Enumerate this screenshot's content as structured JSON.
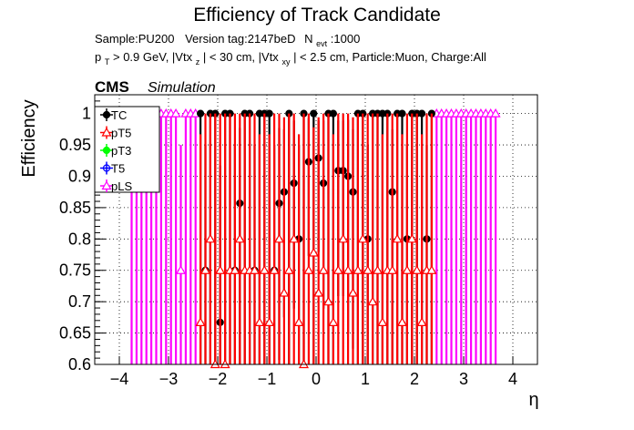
{
  "chart_data": {
    "type": "scatter",
    "title": "Efficiency of Track Candidate",
    "info_line1": {
      "sample": "Sample:PU200",
      "version": "Version tag:2147beD",
      "nevt_main": "N",
      "nevt_sub": "evt",
      "nevt_value": ":1000"
    },
    "info_line2": {
      "p": "p",
      "p_sub": "T",
      "cut1": " > 0.9 GeV, |Vtx",
      "sub1": "z",
      "cut2": "| < 30 cm, |Vtx",
      "sub2": "xy",
      "cut3": "| < 2.5 cm, Particle:Muon, Charge:All"
    },
    "cms_label": "CMS",
    "cms_sub": "Simulation",
    "xlabel": "η",
    "ylabel": "Efficiency",
    "xlim": [
      -4.5,
      4.5
    ],
    "ylim": [
      0.6,
      1.03
    ],
    "xticks": [
      -4,
      -3,
      -2,
      -1,
      0,
      1,
      2,
      3,
      4
    ],
    "xtick_labels": [
      "−4",
      "−3",
      "−2",
      "−1",
      "0",
      "1",
      "2",
      "3",
      "4"
    ],
    "yticks": [
      0.6,
      0.65,
      0.7,
      0.75,
      0.8,
      0.85,
      0.9,
      0.95,
      1
    ],
    "ytick_labels": [
      "0.6",
      "0.65",
      "0.7",
      "0.75",
      "0.8",
      "0.85",
      "0.9",
      "0.95",
      "1"
    ],
    "grid": true,
    "legend_position": "top-left",
    "series": [
      {
        "name": "pLS",
        "color": "#ff00ff",
        "marker": "triangle",
        "x": [
          -3.75,
          -3.65,
          -3.55,
          -3.45,
          -3.35,
          -3.25,
          -3.15,
          -3.05,
          -2.95,
          -2.85,
          -2.75,
          -2.65,
          -2.55,
          -2.45,
          2.45,
          2.55,
          2.65,
          2.75,
          2.85,
          2.95,
          3.05,
          3.15,
          3.25,
          3.35,
          3.45,
          3.55,
          3.65
        ],
        "y": [
          1,
          1,
          1,
          1,
          1,
          1,
          1,
          1,
          1,
          1,
          0.75,
          1,
          1,
          1,
          1,
          1,
          1,
          1,
          1,
          1,
          1,
          1,
          1,
          1,
          1,
          1,
          1
        ],
        "err_low": [
          0.4,
          0.4,
          0.4,
          0.4,
          0.4,
          0.4,
          0.4,
          0.4,
          0.4,
          0.4,
          0.35,
          0.4,
          0.4,
          0.4,
          0.4,
          0.4,
          0.4,
          0.4,
          0.4,
          0.4,
          0.4,
          0.4,
          0.4,
          0.4,
          0.4,
          0.4,
          0.4
        ],
        "err_high": [
          0,
          0,
          0,
          0,
          0,
          0,
          0,
          0,
          0,
          0,
          0.2,
          0,
          0,
          0,
          0,
          0,
          0,
          0,
          0,
          0,
          0,
          0,
          0,
          0,
          0,
          0,
          0
        ]
      },
      {
        "name": "TC",
        "color": "#000000",
        "marker": "circle",
        "x": [
          -2.35,
          -2.25,
          -2.15,
          -2.05,
          -1.95,
          -1.85,
          -1.75,
          -1.65,
          -1.55,
          -1.45,
          -1.35,
          -1.25,
          -1.15,
          -1.05,
          -0.95,
          -0.85,
          -0.75,
          -0.65,
          -0.55,
          -0.45,
          -0.35,
          -0.25,
          -0.15,
          -0.05,
          0.05,
          0.15,
          0.25,
          0.35,
          0.45,
          0.55,
          0.65,
          0.75,
          0.85,
          0.95,
          1.05,
          1.15,
          1.25,
          1.35,
          1.45,
          1.55,
          1.65,
          1.75,
          1.85,
          1.95,
          2.05,
          2.15,
          2.25,
          2.35
        ],
        "y": [
          1,
          0.75,
          1,
          1,
          0.667,
          1,
          1,
          0.75,
          0.857,
          1,
          1,
          0.75,
          1,
          1,
          1,
          0.75,
          0.857,
          0.875,
          1,
          0.889,
          0.8,
          1,
          0.923,
          1,
          0.929,
          0.889,
          1,
          1,
          0.909,
          0.909,
          0.9,
          0.875,
          1,
          1,
          0.8,
          1,
          1,
          1,
          1,
          0.875,
          1,
          1,
          0.8,
          1,
          1,
          1,
          0.8,
          1
        ],
        "err_low": [
          0.4,
          0.3,
          0.4,
          0.4,
          0.25,
          0.4,
          0.4,
          0.3,
          0.3,
          0.4,
          0.4,
          0.3,
          0.4,
          0.4,
          0.4,
          0.3,
          0.25,
          0.2,
          0.4,
          0.2,
          0.25,
          0.4,
          0.15,
          0.4,
          0.15,
          0.2,
          0.4,
          0.4,
          0.2,
          0.2,
          0.25,
          0.25,
          0.4,
          0.4,
          0.3,
          0.4,
          0.4,
          0.4,
          0.4,
          0.3,
          0.4,
          0.4,
          0.3,
          0.4,
          0.4,
          0.4,
          0.3,
          0.4
        ],
        "err_high": [
          0,
          0.2,
          0,
          0,
          0.25,
          0,
          0,
          0.2,
          0.12,
          0,
          0,
          0.2,
          0,
          0,
          0,
          0.2,
          0.12,
          0.1,
          0,
          0.1,
          0.15,
          0,
          0.07,
          0,
          0.06,
          0.1,
          0,
          0,
          0.08,
          0.08,
          0.09,
          0.1,
          0,
          0,
          0.15,
          0,
          0,
          0,
          0,
          0.1,
          0,
          0,
          0.15,
          0,
          0,
          0,
          0.15,
          0
        ]
      },
      {
        "name": "pT5",
        "color": "#ff0000",
        "marker": "triangle",
        "x": [
          -2.35,
          -2.25,
          -2.15,
          -2.05,
          -1.95,
          -1.85,
          -1.75,
          -1.65,
          -1.55,
          -1.45,
          -1.35,
          -1.25,
          -1.15,
          -1.05,
          -0.95,
          -0.85,
          -0.75,
          -0.65,
          -0.55,
          -0.45,
          -0.35,
          -0.25,
          -0.15,
          -0.05,
          0.05,
          0.15,
          0.25,
          0.35,
          0.45,
          0.55,
          0.65,
          0.75,
          0.85,
          0.95,
          1.05,
          1.15,
          1.25,
          1.35,
          1.45,
          1.55,
          1.65,
          1.75,
          1.85,
          1.95,
          2.05,
          2.15,
          2.25,
          2.35
        ],
        "y": [
          0.667,
          0.75,
          0.8,
          0.6,
          0.75,
          0.6,
          0.75,
          0.75,
          0.8,
          0.75,
          0.75,
          0.75,
          0.667,
          0.75,
          0.667,
          0.75,
          0.8,
          0.714,
          0.75,
          0.8,
          0.667,
          0.6,
          0.75,
          0.778,
          0.714,
          0.75,
          0.7,
          0.667,
          0.75,
          0.8,
          0.75,
          0.714,
          0.75,
          0.8,
          0.75,
          0.7,
          0.75,
          0.667,
          0.75,
          0.75,
          0.8,
          0.667,
          0.75,
          0.8,
          0.75,
          0.667,
          0.75,
          0.75
        ],
        "err_low": [
          0.3,
          0.3,
          0.3,
          0.3,
          0.3,
          0.3,
          0.3,
          0.3,
          0.3,
          0.3,
          0.3,
          0.3,
          0.3,
          0.3,
          0.3,
          0.3,
          0.3,
          0.3,
          0.3,
          0.3,
          0.3,
          0.3,
          0.3,
          0.3,
          0.3,
          0.3,
          0.3,
          0.3,
          0.3,
          0.3,
          0.3,
          0.3,
          0.3,
          0.3,
          0.3,
          0.3,
          0.3,
          0.3,
          0.3,
          0.3,
          0.3,
          0.3,
          0.3,
          0.3,
          0.3,
          0.3,
          0.3,
          0.3
        ],
        "err_high": [
          0.3,
          0.25,
          0.2,
          0.4,
          0.25,
          0.4,
          0.25,
          0.25,
          0.2,
          0.25,
          0.25,
          0.25,
          0.3,
          0.25,
          0.3,
          0.25,
          0.2,
          0.28,
          0.25,
          0.2,
          0.3,
          0.4,
          0.25,
          0.2,
          0.28,
          0.25,
          0.3,
          0.3,
          0.25,
          0.2,
          0.25,
          0.28,
          0.25,
          0.2,
          0.25,
          0.3,
          0.25,
          0.3,
          0.25,
          0.25,
          0.2,
          0.3,
          0.25,
          0.2,
          0.25,
          0.3,
          0.25,
          0.25
        ]
      },
      {
        "name": "pT3",
        "color": "#00ff00",
        "marker": "circle",
        "x": [],
        "y": [],
        "err_low": [],
        "err_high": []
      },
      {
        "name": "T5",
        "color": "#0000ff",
        "marker": "circle",
        "x": [],
        "y": [],
        "err_low": [],
        "err_high": []
      }
    ],
    "legend_order": [
      "TC",
      "pT5",
      "pT3",
      "T5",
      "pLS"
    ]
  }
}
